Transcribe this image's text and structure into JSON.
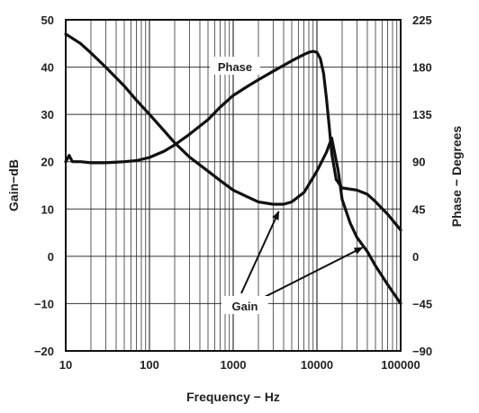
{
  "chart_data": {
    "type": "line",
    "xlabel": "Frequency − Hz",
    "ylabel_left": "Gain−dB",
    "ylabel_right": "Phase − Degrees",
    "x_scale": "log",
    "xlim": [
      10,
      100000
    ],
    "ylim_left": [
      -20,
      50
    ],
    "ylim_right": [
      -90,
      225
    ],
    "grid": true,
    "x_ticks": [
      10,
      100,
      1000,
      10000,
      100000
    ],
    "x_tick_labels": [
      "10",
      "100",
      "1000",
      "10000",
      "100000"
    ],
    "y_left_ticks": [
      -20,
      -10,
      0,
      10,
      20,
      30,
      40,
      50
    ],
    "y_left_tick_labels": [
      "−20",
      "−10",
      "0",
      "10",
      "20",
      "30",
      "40",
      "50"
    ],
    "y_right_ticks": [
      -90,
      -45,
      0,
      45,
      90,
      135,
      180,
      225
    ],
    "y_right_tick_labels": [
      "−90",
      "−45",
      "0",
      "45",
      "90",
      "135",
      "180",
      "225"
    ],
    "series": [
      {
        "name": "Gain",
        "axis": "left",
        "x": [
          10,
          15,
          20,
          30,
          50,
          70,
          100,
          150,
          200,
          300,
          500,
          700,
          1000,
          1500,
          2000,
          3000,
          4000,
          5000,
          7000,
          10000,
          13000,
          15000,
          18000,
          20000,
          25000,
          30000,
          40000,
          50000,
          70000,
          100000
        ],
        "values": [
          47,
          45,
          43,
          40,
          36,
          33,
          30,
          26.5,
          24,
          21,
          18,
          16,
          14,
          12.5,
          11.5,
          11,
          11,
          11.5,
          13.5,
          18,
          22,
          25,
          18,
          12,
          7,
          4,
          1,
          -2,
          -6,
          -10
        ]
      },
      {
        "name": "Phase",
        "axis": "right",
        "x": [
          10,
          11,
          12,
          15,
          20,
          30,
          50,
          70,
          100,
          150,
          200,
          300,
          500,
          700,
          1000,
          1500,
          2000,
          3000,
          5000,
          7000,
          8000,
          9000,
          10000,
          11000,
          12000,
          13000,
          14000,
          15000,
          17000,
          20000,
          30000,
          40000,
          50000,
          70000,
          100000
        ],
        "values": [
          90,
          96,
          90,
          90,
          89,
          89,
          90,
          91,
          94,
          100,
          106,
          116,
          130,
          142,
          153,
          162,
          168,
          176,
          186,
          192,
          194,
          195,
          194,
          188,
          174,
          150,
          124,
          98,
          73,
          65,
          63,
          59,
          52,
          40,
          25
        ]
      }
    ],
    "annotations": [
      {
        "text": "Phase",
        "target_series": "Phase"
      },
      {
        "text": "Gain",
        "target_series": "Gain",
        "points_to": [
          [
            3500,
            11
          ],
          [
            35000,
            3
          ]
        ]
      }
    ]
  }
}
